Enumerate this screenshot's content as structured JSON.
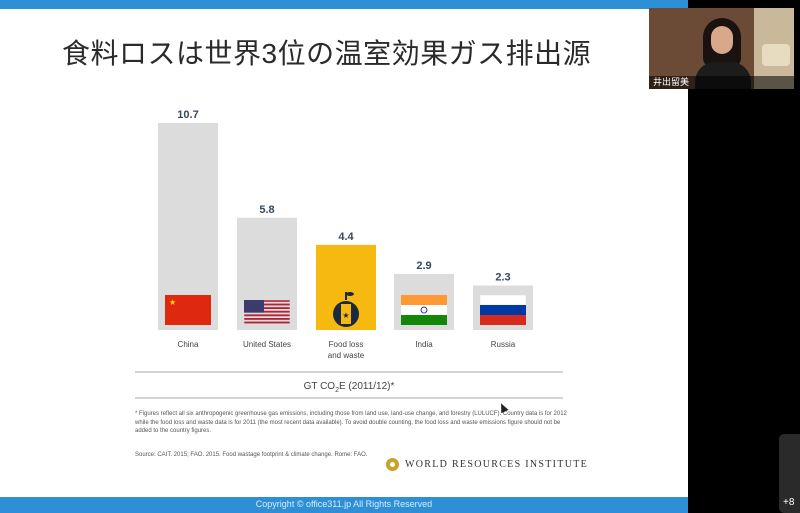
{
  "slide": {
    "title": "食料ロスは世界3位の温室効果ガス排出源",
    "unit_label": "GT CO2E (2011/12)*",
    "unit_label_before": "GT CO",
    "unit_label_sub": "2",
    "unit_label_after": "E (2011/12)*",
    "note_lines": [
      "* Figures reflect all six anthropogenic greenhouse gas emissions, including those from land use, land-use change, and forestry (LULUCF). Country data is for 2012",
      "while the food loss and waste data is for 2011 (the most recent data available). To avoid double counting, the food loss and waste emissions figure should not be",
      "added to the country figures."
    ],
    "source": "Source: CAIT. 2015; FAO. 2015. Food wastage footprint & climate change. Rome: FAO.",
    "publisher": "WORLD RESOURCES INSTITUTE",
    "copyright": "Copyright © office311.jp All Rights Reserved"
  },
  "video": {
    "participant_name": "井出留美"
  },
  "overflow": {
    "label": "+8"
  },
  "colors": {
    "bar_gray": "#dcdcdc",
    "bar_highlight": "#f5b90f",
    "value_text": "#34495e",
    "accent_blue": "#2e8fd6"
  },
  "chart_data": {
    "type": "bar",
    "categories": [
      "China",
      "United States",
      "Food loss and waste",
      "India",
      "Russia"
    ],
    "category_lines": [
      [
        "China"
      ],
      [
        "United States"
      ],
      [
        "Food loss",
        "and waste"
      ],
      [
        "India"
      ],
      [
        "Russia"
      ]
    ],
    "values": [
      10.7,
      5.8,
      4.4,
      2.9,
      2.3
    ],
    "value_labels": [
      "10.7",
      "5.8",
      "4.4",
      "2.9",
      "2.3"
    ],
    "highlight_index": 2,
    "icons": [
      "china-flag-icon",
      "us-flag-icon",
      "apple-core-icon",
      "india-flag-icon",
      "russia-flag-icon"
    ],
    "xlabel": "GT CO2E (2011/12)*",
    "ylim": [
      0,
      10.7
    ]
  }
}
